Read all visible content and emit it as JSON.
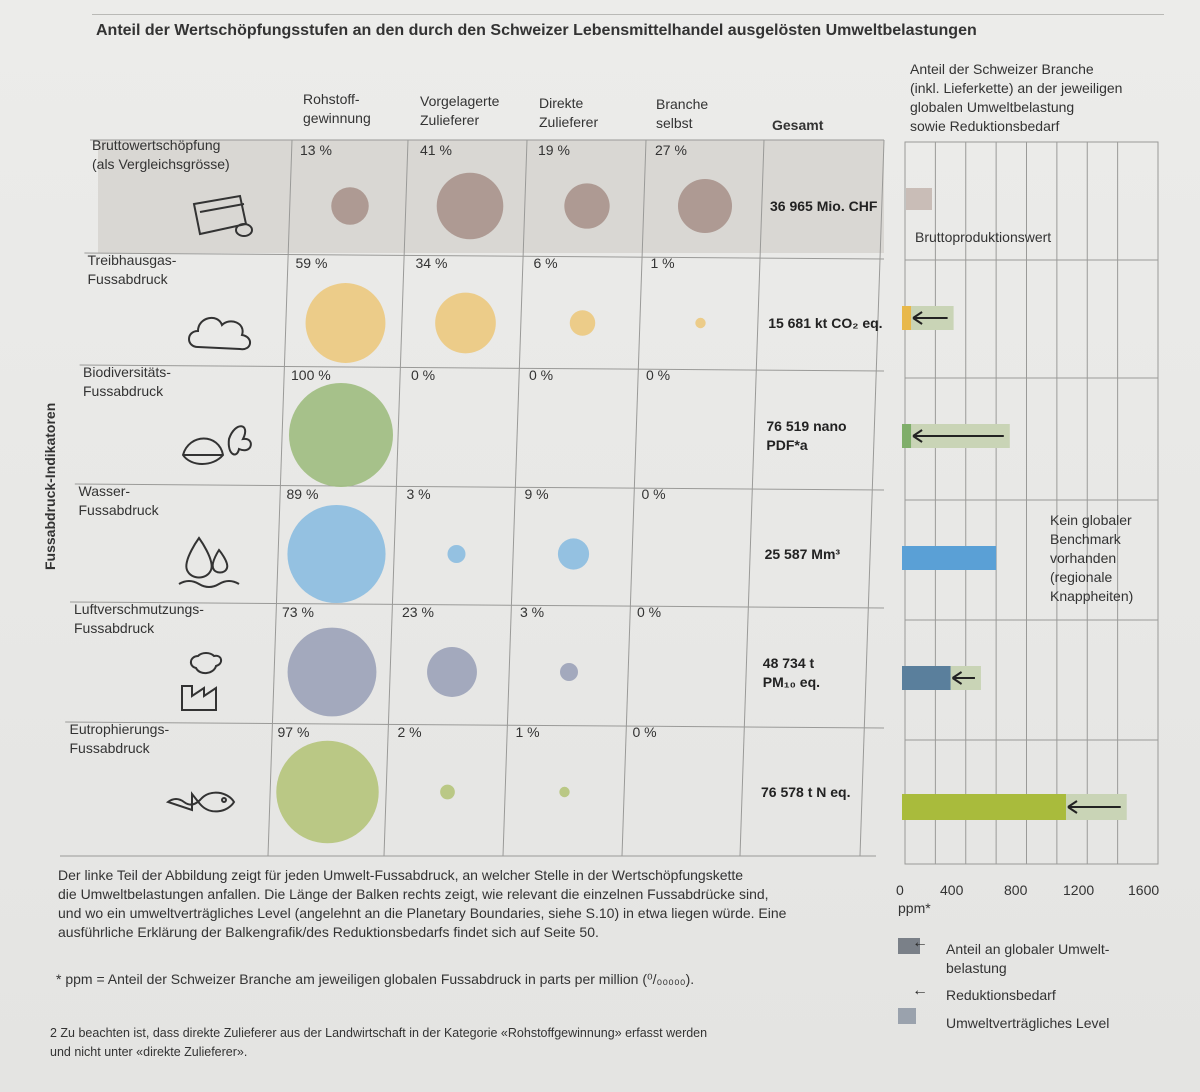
{
  "title": "Anteil der Wertschöpfungsstufen an den durch den Schweizer Lebensmittelhandel ausgelösten Umweltbelastungen",
  "columns": {
    "rohstoff": [
      "Rohstoff-",
      "gewinnung"
    ],
    "vorgelagerte": [
      "Vorgelagerte",
      "Zulieferer"
    ],
    "direkte": [
      "Direkte",
      "Zulieferer"
    ],
    "branche": [
      "Branche",
      "selbst"
    ],
    "gesamt": "Gesamt"
  },
  "right_header": [
    "Anteil der Schweizer Branche",
    "(inkl. Lieferkette) an der jeweiligen",
    "globalen Umweltbelastung",
    "sowie Reduktionsbedarf"
  ],
  "vertical_label": "Fussabdruck-Indikatoren",
  "chart_data": {
    "type": "table",
    "rows": [
      {
        "label": [
          "Bruttowertschöpfung",
          "(als Vergleichsgrösse)"
        ],
        "icon": "money-icon",
        "color": "#a8948c",
        "values": [
          13,
          41,
          19,
          27
        ],
        "pct_labels": [
          "13 %",
          "41 %",
          "19 %",
          "27 %"
        ],
        "total": [
          "36 965 Mio. CHF"
        ],
        "bar": {
          "value": 100,
          "target": null
        },
        "bar_note": "Bruttoproduktionswert"
      },
      {
        "label": [
          "Treibhausgas-",
          "Fussabdruck"
        ],
        "icon": "co2-cloud-icon",
        "color": "#ecc97e",
        "values": [
          59,
          34,
          6,
          1
        ],
        "pct_labels": [
          "59 %",
          "34 %",
          "6 %",
          "1 %"
        ],
        "total": [
          "15 681 kt CO₂ eq."
        ],
        "bar": {
          "value": 320,
          "target": 40
        }
      },
      {
        "label": [
          "Biodiversitäts-",
          "Fussabdruck"
        ],
        "icon": "leaf-butterfly-icon",
        "color": "#9ebd7f",
        "values": [
          100,
          0,
          0,
          0
        ],
        "pct_labels": [
          "100 %",
          "0 %",
          "0 %",
          "0 %"
        ],
        "total": [
          "76 519 nano",
          "PDF*a"
        ],
        "bar": {
          "value": 690,
          "target": 40
        }
      },
      {
        "label": [
          "Wasser-",
          "Fussabdruck"
        ],
        "icon": "water-drops-icon",
        "color": "#8bbde0",
        "values": [
          89,
          3,
          9,
          0
        ],
        "pct_labels": [
          "89 %",
          "3 %",
          "9 %",
          "0 %"
        ],
        "total": [
          "25 587 Mm³"
        ],
        "bar": {
          "value": 600,
          "target": null
        }
      },
      {
        "label": [
          "Luftverschmutzungs-",
          "Fussabdruck"
        ],
        "icon": "factory-smoke-icon",
        "color": "#9ba2b8",
        "values": [
          73,
          23,
          3,
          0
        ],
        "pct_labels": [
          "73 %",
          "23 %",
          "3 %",
          "0 %"
        ],
        "total": [
          "48 734 t",
          "PM₁₀ eq."
        ],
        "bar": {
          "value": 500,
          "target": 300
        }
      },
      {
        "label": [
          "Eutrophierungs-",
          "Fussabdruck"
        ],
        "icon": "fish-icon",
        "color": "#b5c47a",
        "values": [
          97,
          2,
          1,
          0
        ],
        "pct_labels": [
          "97 %",
          "2 %",
          "1 %",
          "0 %"
        ],
        "total": [
          "76 578 t N eq."
        ],
        "bar": {
          "value": 1460,
          "target": 1060
        }
      }
    ],
    "bar_axis": {
      "ticks": [
        "0",
        "400",
        "800",
        "1200",
        "1600"
      ],
      "range": [
        0,
        1600
      ],
      "unit": "ppm*"
    }
  },
  "no_benchmark": [
    "Kein globaler",
    "Benchmark",
    "vorhanden",
    "(regionale",
    "Knappheiten)"
  ],
  "footnotes": {
    "main": [
      "Der linke Teil der Abbildung zeigt für jeden Umwelt-Fussabdruck, an welcher Stelle in der Wertschöpfungskette",
      "die Umweltbelastungen anfallen. Die Länge der Balken rechts zeigt, wie relevant die einzelnen Fussabdrücke sind,",
      "und wo ein umweltverträgliches Level (angelehnt an die Planetary Boundaries, siehe S.10) in etwa liegen würde. Eine",
      "ausführliche Erklärung der Balkengrafik/des Reduktionsbedarfs findet sich auf Seite 50."
    ],
    "ppm": "*   ppm = Anteil der Schweizer Branche am jeweiligen globalen Fussabdruck in parts per million (⁰/₀₀₀₀₀).",
    "note2": [
      "2  Zu beachten ist, dass direkte Zulieferer aus der Landwirtschaft in der Kategorie «Rohstoffgewinnung» erfasst werden",
      "    und nicht unter «direkte Zulieferer»."
    ]
  },
  "legend": {
    "anteil": [
      "Anteil an globaler Umwelt-",
      "belastung"
    ],
    "reduktion": "Reduktionsbedarf",
    "level": "Umweltverträgliches Level"
  },
  "colors": {
    "grid": "#9a9a98",
    "bar_dark": "#7a8088",
    "reduction": "#c9d4b6"
  }
}
